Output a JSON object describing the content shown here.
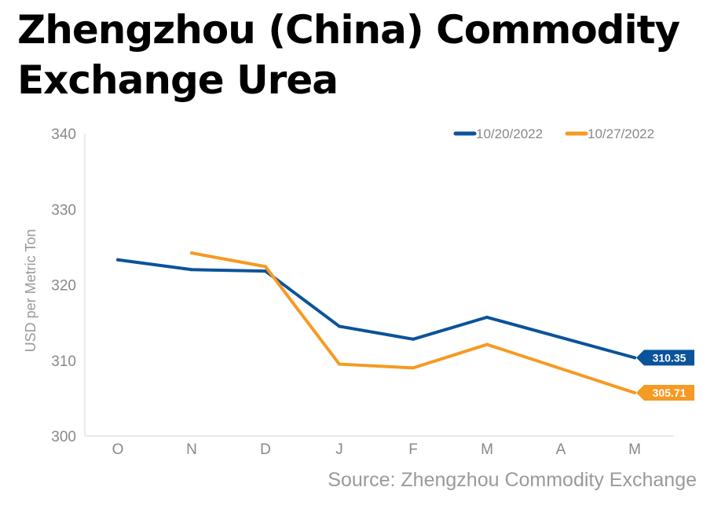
{
  "title": "Zhengzhou (China) Commodity Exchange Urea",
  "source": "Source: Zhengzhou Commodity Exchange",
  "chart_data": {
    "type": "line",
    "title": "Zhengzhou (China) Commodity Exchange Urea",
    "ylabel": "USD per Metric Ton",
    "xlabel": "",
    "categories": [
      "O",
      "N",
      "D",
      "J",
      "F",
      "M",
      "A",
      "M"
    ],
    "ylim": [
      300,
      340
    ],
    "yticks": [
      300,
      310,
      320,
      330,
      340
    ],
    "grid": false,
    "legend": "top-right",
    "series": [
      {
        "name": "10/20/2022",
        "color": "#0b539b",
        "values": [
          323.3,
          322.0,
          321.8,
          314.5,
          312.8,
          315.7,
          null,
          310.35
        ],
        "end_label": "310.35"
      },
      {
        "name": "10/27/2022",
        "color": "#f59a23",
        "values": [
          null,
          324.2,
          322.4,
          309.5,
          309.0,
          312.1,
          null,
          305.71
        ],
        "end_label": "305.71"
      }
    ]
  }
}
